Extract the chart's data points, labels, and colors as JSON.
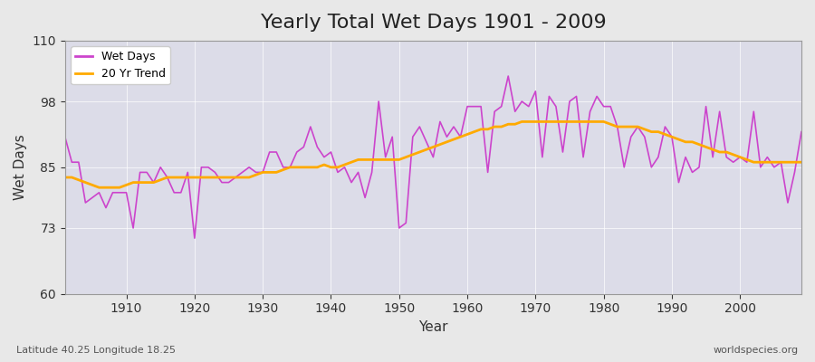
{
  "title": "Yearly Total Wet Days 1901 - 2009",
  "xlabel": "Year",
  "ylabel": "Wet Days",
  "lat_lon_label": "Latitude 40.25 Longitude 18.25",
  "source_label": "worldspecies.org",
  "ylim": [
    60,
    110
  ],
  "yticks": [
    60,
    73,
    85,
    98,
    110
  ],
  "xlim": [
    1901,
    2009
  ],
  "xticks": [
    1910,
    1920,
    1930,
    1940,
    1950,
    1960,
    1970,
    1980,
    1990,
    2000
  ],
  "wet_days_color": "#cc44cc",
  "trend_color": "#ffaa00",
  "background_color": "#e8e8e8",
  "plot_bg_color": "#e0e0e8",
  "years": [
    1901,
    1902,
    1903,
    1904,
    1905,
    1906,
    1907,
    1908,
    1909,
    1910,
    1911,
    1912,
    1913,
    1914,
    1915,
    1916,
    1917,
    1918,
    1919,
    1920,
    1921,
    1922,
    1923,
    1924,
    1925,
    1926,
    1927,
    1928,
    1929,
    1930,
    1931,
    1932,
    1933,
    1934,
    1935,
    1936,
    1937,
    1938,
    1939,
    1940,
    1941,
    1942,
    1943,
    1944,
    1945,
    1946,
    1947,
    1948,
    1949,
    1950,
    1951,
    1952,
    1953,
    1954,
    1955,
    1956,
    1957,
    1958,
    1959,
    1960,
    1961,
    1962,
    1963,
    1964,
    1965,
    1966,
    1967,
    1968,
    1969,
    1970,
    1971,
    1972,
    1973,
    1974,
    1975,
    1976,
    1977,
    1978,
    1979,
    1980,
    1981,
    1982,
    1983,
    1984,
    1985,
    1986,
    1987,
    1988,
    1989,
    1990,
    1991,
    1992,
    1993,
    1994,
    1995,
    1996,
    1997,
    1998,
    1999,
    2000,
    2001,
    2002,
    2003,
    2004,
    2005,
    2006,
    2007,
    2008,
    2009
  ],
  "wet_days": [
    91,
    86,
    86,
    78,
    79,
    80,
    77,
    80,
    80,
    80,
    73,
    84,
    84,
    82,
    85,
    83,
    80,
    80,
    84,
    71,
    85,
    85,
    84,
    82,
    82,
    83,
    84,
    85,
    84,
    84,
    88,
    88,
    85,
    85,
    88,
    89,
    93,
    89,
    87,
    88,
    84,
    85,
    82,
    84,
    79,
    84,
    98,
    87,
    91,
    73,
    74,
    91,
    93,
    90,
    87,
    94,
    91,
    93,
    91,
    97,
    97,
    97,
    84,
    96,
    97,
    103,
    96,
    98,
    97,
    100,
    87,
    99,
    97,
    88,
    98,
    99,
    87,
    96,
    99,
    97,
    97,
    93,
    85,
    91,
    93,
    91,
    85,
    87,
    93,
    91,
    82,
    87,
    84,
    85,
    97,
    87,
    96,
    87,
    86,
    87,
    86,
    96,
    85,
    87,
    85,
    86,
    78,
    84,
    92
  ],
  "trend": [
    83,
    83,
    82.5,
    82,
    81.5,
    81,
    81,
    81,
    81,
    81.5,
    82,
    82,
    82,
    82,
    82.5,
    83,
    83,
    83,
    83,
    83,
    83,
    83,
    83,
    83,
    83,
    83,
    83,
    83,
    83.5,
    84,
    84,
    84,
    84.5,
    85,
    85,
    85,
    85,
    85,
    85.5,
    85,
    85,
    85.5,
    86,
    86.5,
    86.5,
    86.5,
    86.5,
    86.5,
    86.5,
    86.5,
    87,
    87.5,
    88,
    88.5,
    89,
    89.5,
    90,
    90.5,
    91,
    91.5,
    92,
    92.5,
    92.5,
    93,
    93,
    93.5,
    93.5,
    94,
    94,
    94,
    94,
    94,
    94,
    94,
    94,
    94,
    94,
    94,
    94,
    94,
    93.5,
    93,
    93,
    93,
    93,
    92.5,
    92,
    92,
    91.5,
    91,
    90.5,
    90,
    90,
    89.5,
    89,
    88.5,
    88,
    88,
    87.5,
    87,
    86.5,
    86,
    86,
    86,
    86,
    86,
    86,
    86,
    86
  ]
}
